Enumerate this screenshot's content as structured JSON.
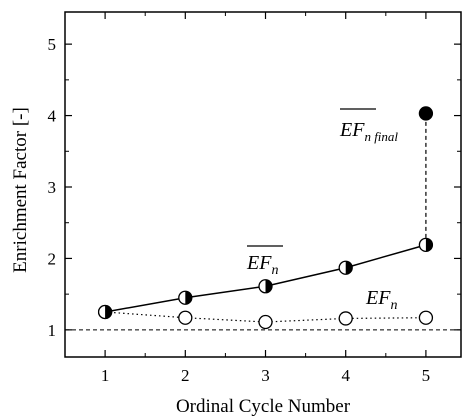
{
  "chart_data": {
    "type": "line",
    "xlabel": "Ordinal Cycle Number",
    "ylabel": "Enrichment Factor  [-]",
    "xlim": [
      0.5,
      5.45
    ],
    "ylim": [
      0.62,
      5.45
    ],
    "x_ticks": [
      1,
      2,
      3,
      4,
      5
    ],
    "y_ticks": [
      1,
      2,
      3,
      4,
      5
    ],
    "reference_line_y": 1,
    "series": [
      {
        "name": "EF_n-bar",
        "label_main": "EF",
        "label_sub": "n",
        "overline": true,
        "marker": "half-filled circle",
        "line": "solid",
        "x": [
          1,
          2,
          3,
          4,
          5
        ],
        "y": [
          1.25,
          1.45,
          1.61,
          1.87,
          2.19
        ]
      },
      {
        "name": "EF_n",
        "label_main": "EF",
        "label_sub": "n",
        "overline": false,
        "marker": "open circle",
        "line": "dotted",
        "x": [
          1,
          2,
          3,
          4,
          5
        ],
        "y": [
          1.25,
          1.17,
          1.11,
          1.16,
          1.17
        ]
      },
      {
        "name": "EF_n-final-bar",
        "label_main": "EF",
        "label_sub": "n final",
        "overline": true,
        "marker": "filled circle",
        "line": "dashed vertical from x=5 EF_n-bar point",
        "x": [
          5
        ],
        "y": [
          4.03
        ]
      }
    ],
    "grid": false,
    "legend": "inline annotations"
  }
}
